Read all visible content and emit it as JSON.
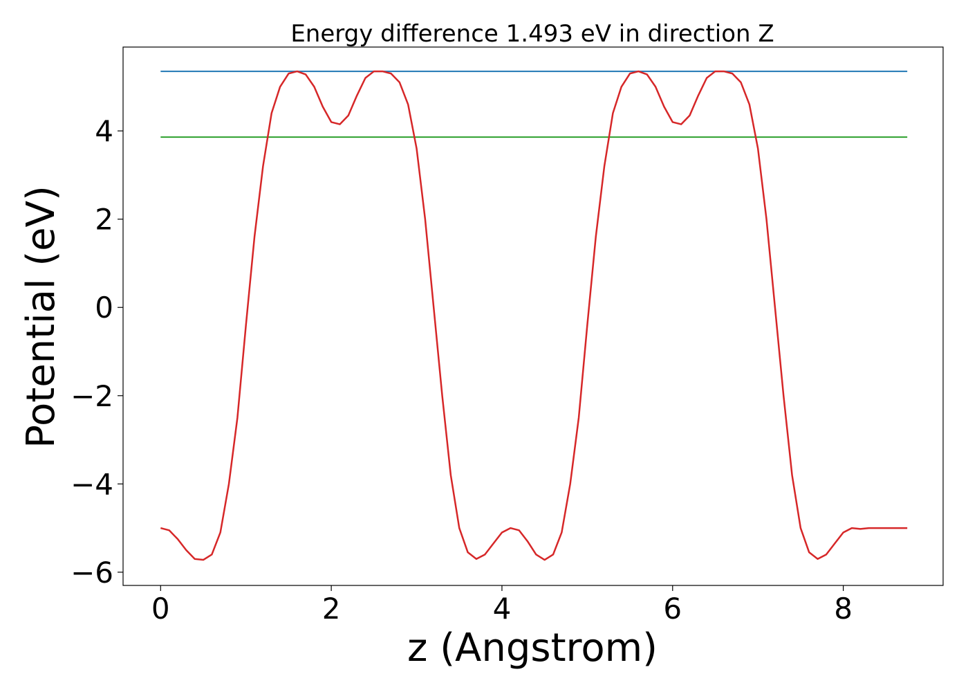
{
  "chart_data": {
    "type": "line",
    "title": "Energy difference 1.493 eV in direction Z",
    "xlabel": "z (Angstrom)",
    "ylabel": "Potential (eV)",
    "xlim": [
      -0.44,
      9.17
    ],
    "ylim": [
      -6.3,
      5.9
    ],
    "xticks": [
      0,
      2,
      4,
      6,
      8
    ],
    "yticks": [
      -6,
      -4,
      -2,
      0,
      2,
      4
    ],
    "grid": false,
    "series": [
      {
        "color": "#d62728",
        "x": [
          0.0,
          0.1,
          0.2,
          0.3,
          0.4,
          0.5,
          0.6,
          0.7,
          0.8,
          0.9,
          1.0,
          1.1,
          1.2,
          1.3,
          1.4,
          1.5,
          1.6,
          1.7,
          1.8,
          1.9,
          2.0,
          2.1,
          2.2,
          2.3,
          2.4,
          2.5,
          2.6,
          2.7,
          2.8,
          2.9,
          3.0,
          3.1,
          3.2,
          3.3,
          3.4,
          3.5,
          3.6,
          3.7,
          3.8,
          3.9,
          4.0,
          4.1,
          4.2,
          4.3,
          4.4,
          4.5,
          4.6,
          4.7,
          4.8,
          4.9,
          5.0,
          5.1,
          5.2,
          5.3,
          5.4,
          5.5,
          5.6,
          5.7,
          5.8,
          5.9,
          6.0,
          6.1,
          6.2,
          6.3,
          6.4,
          6.5,
          6.6,
          6.7,
          6.8,
          6.9,
          7.0,
          7.1,
          7.2,
          7.3,
          7.4,
          7.5,
          7.6,
          7.7,
          7.8,
          7.9,
          8.0,
          8.1,
          8.2,
          8.3,
          8.4,
          8.5,
          8.6,
          8.7,
          8.75
        ],
        "y": [
          -5.0,
          -5.05,
          -5.25,
          -5.5,
          -5.7,
          -5.72,
          -5.6,
          -5.1,
          -4.0,
          -2.5,
          -0.4,
          1.6,
          3.2,
          4.4,
          5.0,
          5.3,
          5.35,
          5.28,
          5.0,
          4.55,
          4.2,
          4.15,
          4.35,
          4.8,
          5.2,
          5.35,
          5.35,
          5.3,
          5.1,
          4.6,
          3.6,
          2.0,
          0.0,
          -2.0,
          -3.8,
          -5.0,
          -5.55,
          -5.7,
          -5.6,
          -5.35,
          -5.1,
          -5.0,
          -5.05,
          -5.3,
          -5.6,
          -5.72,
          -5.6,
          -5.1,
          -4.0,
          -2.5,
          -0.4,
          1.6,
          3.2,
          4.4,
          5.0,
          5.3,
          5.35,
          5.28,
          5.0,
          4.55,
          4.2,
          4.15,
          4.35,
          4.8,
          5.2,
          5.35,
          5.35,
          5.3,
          5.1,
          4.6,
          3.6,
          2.0,
          0.0,
          -2.0,
          -3.8,
          -5.0,
          -5.55,
          -5.7,
          -5.6,
          -5.35,
          -5.1,
          -5.0,
          -5.02,
          -5.0,
          -5.0,
          -5.0,
          -5.0,
          -5.0,
          -5.0
        ]
      },
      {
        "color": "#1f77b4",
        "x": [
          0.0,
          8.75
        ],
        "y": [
          5.35,
          5.35
        ]
      },
      {
        "color": "#2ca02c",
        "x": [
          0.0,
          8.75
        ],
        "y": [
          3.86,
          3.86
        ]
      }
    ]
  }
}
